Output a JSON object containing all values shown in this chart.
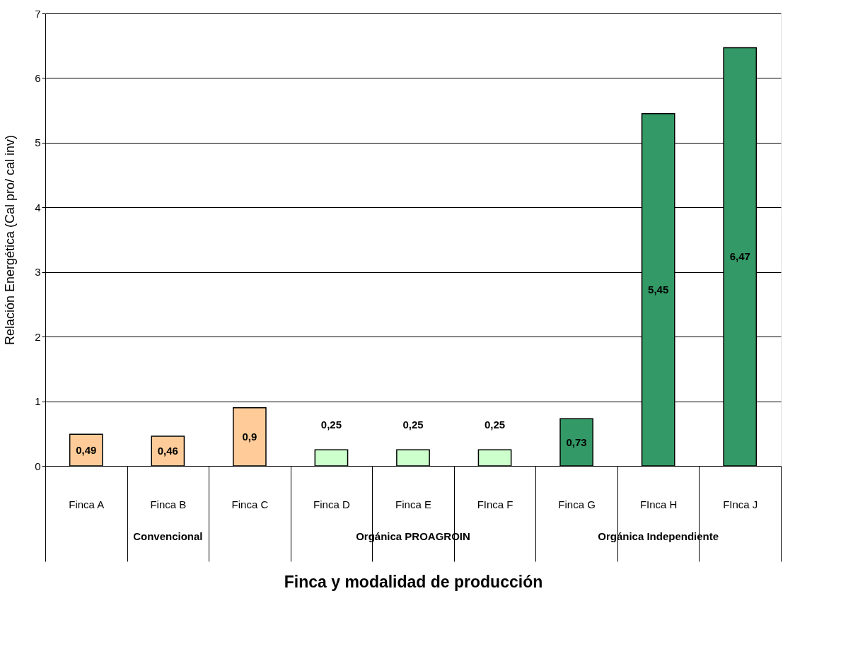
{
  "chart_data": {
    "type": "bar",
    "categories": [
      "Finca A",
      "Finca B",
      "Finca C",
      "Finca D",
      "Finca E",
      "FInca F",
      "Finca G",
      "FInca H",
      "FInca J"
    ],
    "values": [
      0.49,
      0.46,
      0.9,
      0.25,
      0.25,
      0.25,
      0.73,
      5.45,
      6.47
    ],
    "colors": [
      "#ffcc99",
      "#ffcc99",
      "#ffcc99",
      "#ccffcc",
      "#ccffcc",
      "#ccffcc",
      "#339966",
      "#339966",
      "#339966"
    ],
    "xlabel": "Finca y modalidad de producción",
    "ylabel": "Relación Energética (Cal pro/ cal inv)",
    "ylim": [
      0,
      7
    ],
    "yticks": [
      0,
      1,
      2,
      3,
      4,
      5,
      6,
      7
    ],
    "value_labels": [
      "0,49",
      "0,46",
      "0,9",
      "0,25",
      "0,25",
      "0,25",
      "0,73",
      "5,45",
      "6,47"
    ],
    "grid": "y",
    "legend": false,
    "annotations": [
      "Convencional",
      "Orgánica PROAGROIN",
      "Orgánica Independiente"
    ]
  }
}
